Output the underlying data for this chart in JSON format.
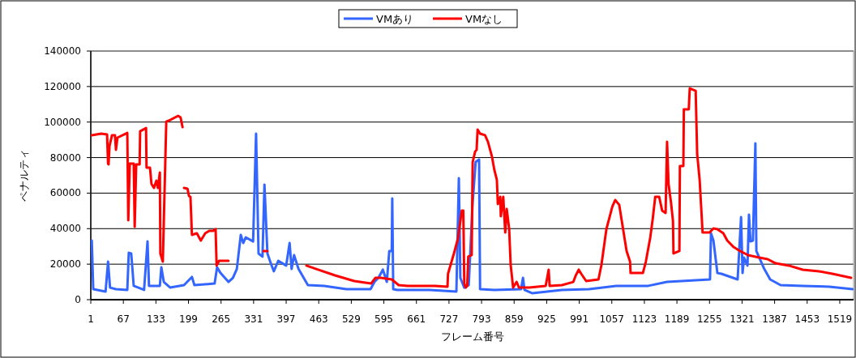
{
  "chart_data": {
    "type": "line",
    "xlabel": "フレーム番号",
    "ylabel": "ペナルティ",
    "xlim": [
      1,
      1547
    ],
    "xticks": [
      1,
      67,
      133,
      199,
      265,
      331,
      397,
      463,
      529,
      595,
      661,
      727,
      793,
      859,
      925,
      991,
      1057,
      1123,
      1189,
      1255,
      1321,
      1387,
      1453,
      1519
    ],
    "ylim": [
      0,
      140000
    ],
    "yticks": [
      0,
      20000,
      40000,
      60000,
      80000,
      100000,
      120000,
      140000
    ],
    "grid": "y",
    "legend": "top",
    "marker": "none",
    "line_style": "solid",
    "series": [
      {
        "name": "VMあり",
        "color": "#3366ff",
        "x": [
          3,
          6,
          31,
          36,
          40,
          52,
          75,
          78,
          83,
          88,
          109,
          116,
          119,
          141,
          144,
          149,
          162,
          190,
          206,
          211,
          252,
          257,
          264,
          280,
          289,
          297,
          305,
          310,
          315,
          330,
          336,
          341,
          349,
          353,
          359,
          367,
          372,
          381,
          397,
          404,
          408,
          413,
          422,
          441,
          474,
          519,
          568,
          576,
          584,
          593,
          601,
          606,
          611,
          612,
          614,
          622,
          688,
          742,
          747,
          750,
          758,
          767,
          775,
          781,
          788,
          790,
          819,
          873,
          877,
          880,
          896,
          956,
          1011,
          1066,
          1131,
          1169,
          1256,
          1258,
          1263,
          1271,
          1279,
          1312,
          1319,
          1322,
          1325,
          1332,
          1335,
          1338,
          1343,
          1348,
          1350,
          1366,
          1378,
          1399,
          1444,
          1498,
          1545
        ],
        "values": [
          33300,
          5900,
          4600,
          21400,
          6800,
          5900,
          5500,
          26400,
          26000,
          7800,
          5500,
          32800,
          7800,
          7800,
          18200,
          10000,
          6800,
          8200,
          12800,
          8200,
          9100,
          18200,
          15000,
          10000,
          12300,
          17300,
          36500,
          31900,
          35100,
          32800,
          93500,
          26000,
          24200,
          64800,
          26000,
          19600,
          16000,
          21900,
          19200,
          31900,
          17300,
          25100,
          17300,
          8200,
          7800,
          5900,
          5900,
          10000,
          12300,
          16900,
          10000,
          27400,
          27400,
          57000,
          5900,
          5500,
          5500,
          4600,
          68400,
          12300,
          6800,
          8200,
          54700,
          77500,
          78900,
          5900,
          5500,
          5900,
          12300,
          5500,
          3600,
          5500,
          5900,
          7800,
          7800,
          10000,
          11400,
          37400,
          33300,
          15000,
          14600,
          11400,
          46500,
          15000,
          23700,
          19200,
          47900,
          32800,
          33300,
          88000,
          27400,
          17300,
          11400,
          8200,
          7800,
          7300,
          5900
        ]
      },
      {
        "name": "VMなし",
        "color": "#ff0000",
        "x": [
          3,
          22,
          34,
          36,
          37,
          39,
          44,
          50,
          52,
          55,
          75,
          77,
          80,
          88,
          90,
          93,
          100,
          101,
          113,
          114,
          121,
          124,
          129,
          134,
          137,
          141,
          142,
          147,
          154,
          162,
          178,
          183,
          187,
          189,
          190,
          197,
          200,
          203,
          206,
          216,
          224,
          233,
          241,
          249,
          254,
          256,
          261,
          280,
          300,
          351,
          359,
          365,
          438,
          458,
          496,
          535,
          569,
          578,
          589,
          611,
          625,
          643,
          699,
          724,
          725,
          737,
          745,
          753,
          756,
          758,
          761,
          764,
          766,
          773,
          775,
          780,
          783,
          785,
          790,
          800,
          806,
          814,
          819,
          824,
          826,
          831,
          832,
          837,
          841,
          844,
          849,
          852,
          857,
          864,
          869,
          890,
          923,
          929,
          931,
          956,
          979,
          984,
          990,
          995,
          1005,
          1030,
          1036,
          1046,
          1053,
          1058,
          1064,
          1072,
          1087,
          1094,
          1095,
          1120,
          1126,
          1135,
          1140,
          1145,
          1153,
          1159,
          1166,
          1169,
          1172,
          1177,
          1181,
          1182,
          1194,
          1195,
          1202,
          1203,
          1213,
          1215,
          1227,
          1230,
          1235,
          1241,
          1255,
          1263,
          1271,
          1283,
          1291,
          1304,
          1317,
          1333,
          1356,
          1373,
          1389,
          1416,
          1444,
          1477,
          1504,
          1542
        ],
        "values": [
          92600,
          93500,
          93000,
          76600,
          76200,
          86600,
          92600,
          92600,
          84400,
          91200,
          93900,
          44700,
          76600,
          76600,
          41000,
          76200,
          76200,
          94800,
          96700,
          74300,
          74300,
          65200,
          62900,
          67000,
          62900,
          71600,
          26000,
          21400,
          100300,
          101200,
          103500,
          102600,
          97100,
          null,
          62900,
          62500,
          58400,
          57900,
          36500,
          37400,
          33300,
          37400,
          38800,
          38800,
          39700,
          19200,
          21900,
          21900,
          null,
          27400,
          27400,
          null,
          19200,
          17300,
          13700,
          10500,
          9100,
          12300,
          12300,
          11400,
          8200,
          7800,
          7800,
          7300,
          14600,
          26000,
          34200,
          50200,
          50200,
          9100,
          6800,
          7800,
          24200,
          25100,
          77500,
          83400,
          84400,
          95800,
          93500,
          92600,
          88900,
          80700,
          73000,
          67500,
          53800,
          57900,
          47000,
          57900,
          37800,
          51100,
          39700,
          19600,
          6800,
          10000,
          6800,
          6800,
          7800,
          16900,
          7800,
          8200,
          10000,
          13700,
          16900,
          14600,
          10500,
          11400,
          19600,
          39700,
          47000,
          52400,
          56100,
          53400,
          27400,
          21400,
          15000,
          15000,
          21400,
          35100,
          45600,
          57900,
          57900,
          50200,
          48800,
          88900,
          65200,
          54700,
          44200,
          26000,
          27400,
          75200,
          75200,
          107200,
          107200,
          119000,
          117600,
          82100,
          67500,
          37800,
          37800,
          40100,
          39700,
          37400,
          33300,
          29600,
          27400,
          25100,
          23700,
          22800,
          20500,
          19200,
          16900,
          16000,
          14600,
          12300
        ]
      }
    ]
  }
}
